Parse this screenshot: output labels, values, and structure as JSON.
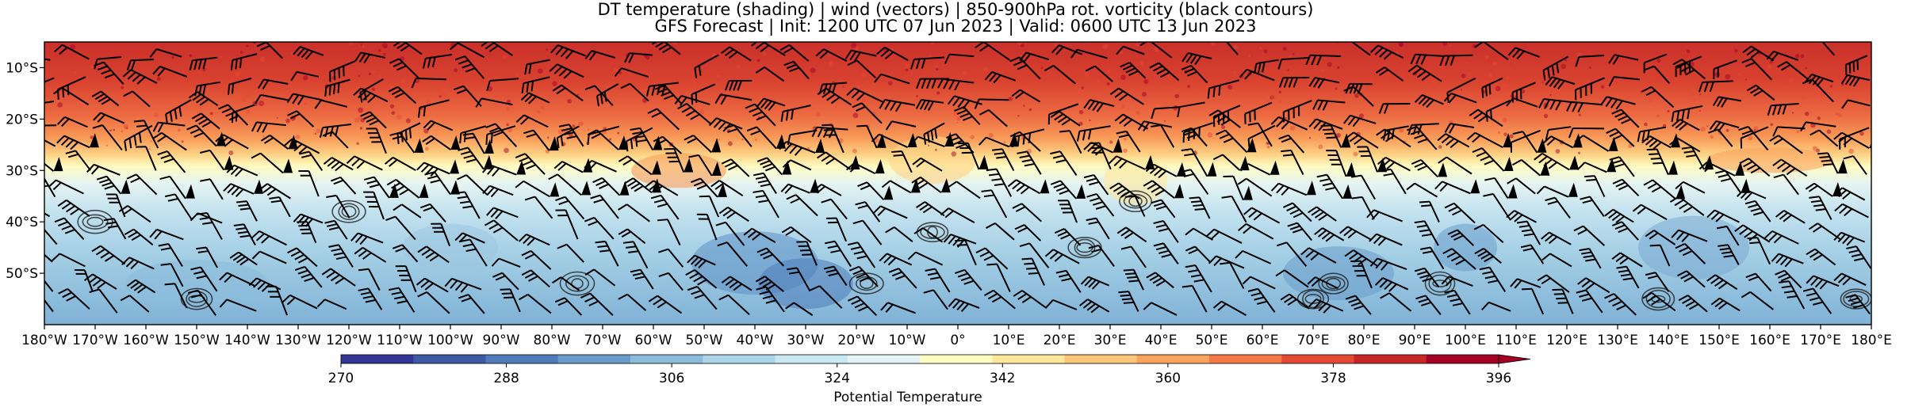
{
  "title": {
    "line1": "DT temperature (shading) | wind (vectors) | 850-900hPa rot. vorticity (black contours)",
    "line2": "GFS Forecast | Init: 1200 UTC 07 Jun 2023 | Valid: 0600 UTC 13 Jun 2023"
  },
  "map": {
    "lon_range": [
      -180,
      180
    ],
    "lat_range": [
      -60,
      -5
    ],
    "lon_ticks": [
      "180°W",
      "170°W",
      "160°W",
      "150°W",
      "140°W",
      "130°W",
      "120°W",
      "110°W",
      "100°W",
      "90°W",
      "80°W",
      "70°W",
      "60°W",
      "50°W",
      "40°W",
      "30°W",
      "20°W",
      "10°W",
      "0°",
      "10°E",
      "20°E",
      "30°E",
      "40°E",
      "50°E",
      "60°E",
      "70°E",
      "80°E",
      "90°E",
      "100°E",
      "110°E",
      "120°E",
      "130°E",
      "140°E",
      "150°E",
      "160°E",
      "170°E",
      "180°E"
    ],
    "lat_ticks": [
      "10°S",
      "20°S",
      "30°S",
      "40°S",
      "50°S"
    ],
    "lat_tick_values": [
      -10,
      -20,
      -30,
      -40,
      -50
    ]
  },
  "colorbar": {
    "label": "Potential Temperature",
    "min": 270,
    "max": 396,
    "ticks": [
      "270",
      "288",
      "306",
      "324",
      "342",
      "360",
      "378",
      "396"
    ],
    "colors": [
      "#313695",
      "#3c59a6",
      "#4f7cb9",
      "#6a9ccb",
      "#8bbcdb",
      "#acd6e8",
      "#c9e8f2",
      "#e3f3f3",
      "#fefec0",
      "#fee79b",
      "#fdc679",
      "#fba25d",
      "#f57848",
      "#e34933",
      "#c92628",
      "#a50026"
    ],
    "extend": "max"
  },
  "colors": {
    "vorticity_contour": "#222222",
    "wind_barb": "#000000"
  }
}
